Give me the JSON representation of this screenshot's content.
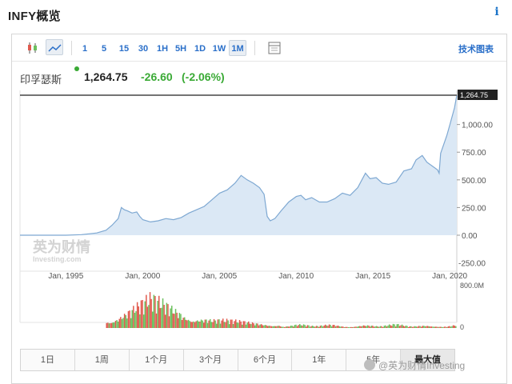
{
  "header": {
    "title": "INFY概览",
    "info_label": "i"
  },
  "toolbar": {
    "timeframes": [
      "1",
      "5",
      "15",
      "30",
      "1H",
      "5H",
      "1D",
      "1W",
      "1M"
    ],
    "active_timeframe": "1M",
    "tech_chart_label": "技术图表"
  },
  "quote": {
    "name": "印孚瑟斯",
    "price": "1,264.75",
    "change": "-26.60",
    "change_pct": "(-2.06%)",
    "change_color": "#3aaa35"
  },
  "ranges": {
    "items": [
      "1日",
      "1周",
      "1个月",
      "3个月",
      "6个月",
      "1年",
      "5年",
      "最大值"
    ],
    "active": "最大值"
  },
  "watermark": {
    "brand": "英为财情",
    "brand_sub": "Investing.com",
    "footer": "@英为财情Investing"
  },
  "colors": {
    "area_fill": "#dbe8f5",
    "area_line": "#7ea8d2",
    "up_volume": "#e15a4e",
    "down_volume": "#6cc05e",
    "price_line": "#222222"
  },
  "chart_data": {
    "type": "area",
    "title": "",
    "xlabel": "",
    "ylabel": "",
    "x_ticks": [
      "Jan, 1995",
      "Jan, 2000",
      "Jan, 2005",
      "Jan, 2010",
      "Jan, 2015",
      "Jan, 2020"
    ],
    "y_ticks": [
      "0.00",
      "250.00",
      "500.00",
      "750.00",
      "1,000.00"
    ],
    "y_extra_ticks": [
      "-250.00"
    ],
    "ylim": [
      -250,
      1264.75
    ],
    "last_value_label": "1,264.75",
    "volume_ticks": [
      "800.0M",
      "0"
    ],
    "series": [
      {
        "values": [
          [
            1993.0,
            0
          ],
          [
            1995.0,
            0
          ],
          [
            1996.0,
            0
          ],
          [
            1997.0,
            5
          ],
          [
            1998.0,
            20
          ],
          [
            1998.6,
            45
          ],
          [
            1999.0,
            90
          ],
          [
            1999.4,
            150
          ],
          [
            1999.6,
            250
          ],
          [
            1999.8,
            230
          ],
          [
            2000.0,
            220
          ],
          [
            2000.3,
            200
          ],
          [
            2000.6,
            210
          ],
          [
            2000.8,
            170
          ],
          [
            2001.0,
            140
          ],
          [
            2001.5,
            120
          ],
          [
            2002.0,
            130
          ],
          [
            2002.5,
            150
          ],
          [
            2003.0,
            140
          ],
          [
            2003.5,
            160
          ],
          [
            2004.0,
            200
          ],
          [
            2004.5,
            230
          ],
          [
            2005.0,
            260
          ],
          [
            2005.5,
            320
          ],
          [
            2006.0,
            380
          ],
          [
            2006.5,
            410
          ],
          [
            2007.0,
            470
          ],
          [
            2007.4,
            540
          ],
          [
            2007.8,
            500
          ],
          [
            2008.2,
            470
          ],
          [
            2008.6,
            430
          ],
          [
            2008.9,
            370
          ],
          [
            2009.1,
            170
          ],
          [
            2009.3,
            130
          ],
          [
            2009.6,
            150
          ],
          [
            2010.0,
            220
          ],
          [
            2010.5,
            300
          ],
          [
            2011.0,
            350
          ],
          [
            2011.3,
            360
          ],
          [
            2011.6,
            320
          ],
          [
            2012.0,
            340
          ],
          [
            2012.5,
            300
          ],
          [
            2013.0,
            300
          ],
          [
            2013.5,
            330
          ],
          [
            2014.0,
            380
          ],
          [
            2014.5,
            360
          ],
          [
            2015.0,
            430
          ],
          [
            2015.5,
            560
          ],
          [
            2015.8,
            510
          ],
          [
            2016.2,
            520
          ],
          [
            2016.6,
            470
          ],
          [
            2017.0,
            460
          ],
          [
            2017.5,
            480
          ],
          [
            2018.0,
            580
          ],
          [
            2018.5,
            600
          ],
          [
            2018.8,
            680
          ],
          [
            2019.2,
            720
          ],
          [
            2019.5,
            660
          ],
          [
            2019.9,
            620
          ],
          [
            2020.2,
            590
          ],
          [
            2020.3,
            560
          ],
          [
            2020.4,
            740
          ],
          [
            2020.8,
            900
          ],
          [
            2021.0,
            1000
          ],
          [
            2021.3,
            1150
          ],
          [
            2021.45,
            1264.75
          ]
        ]
      }
    ],
    "volume": {
      "x_range": [
        1998.5,
        2021.5
      ],
      "note": "bars for monthly volume"
    }
  }
}
